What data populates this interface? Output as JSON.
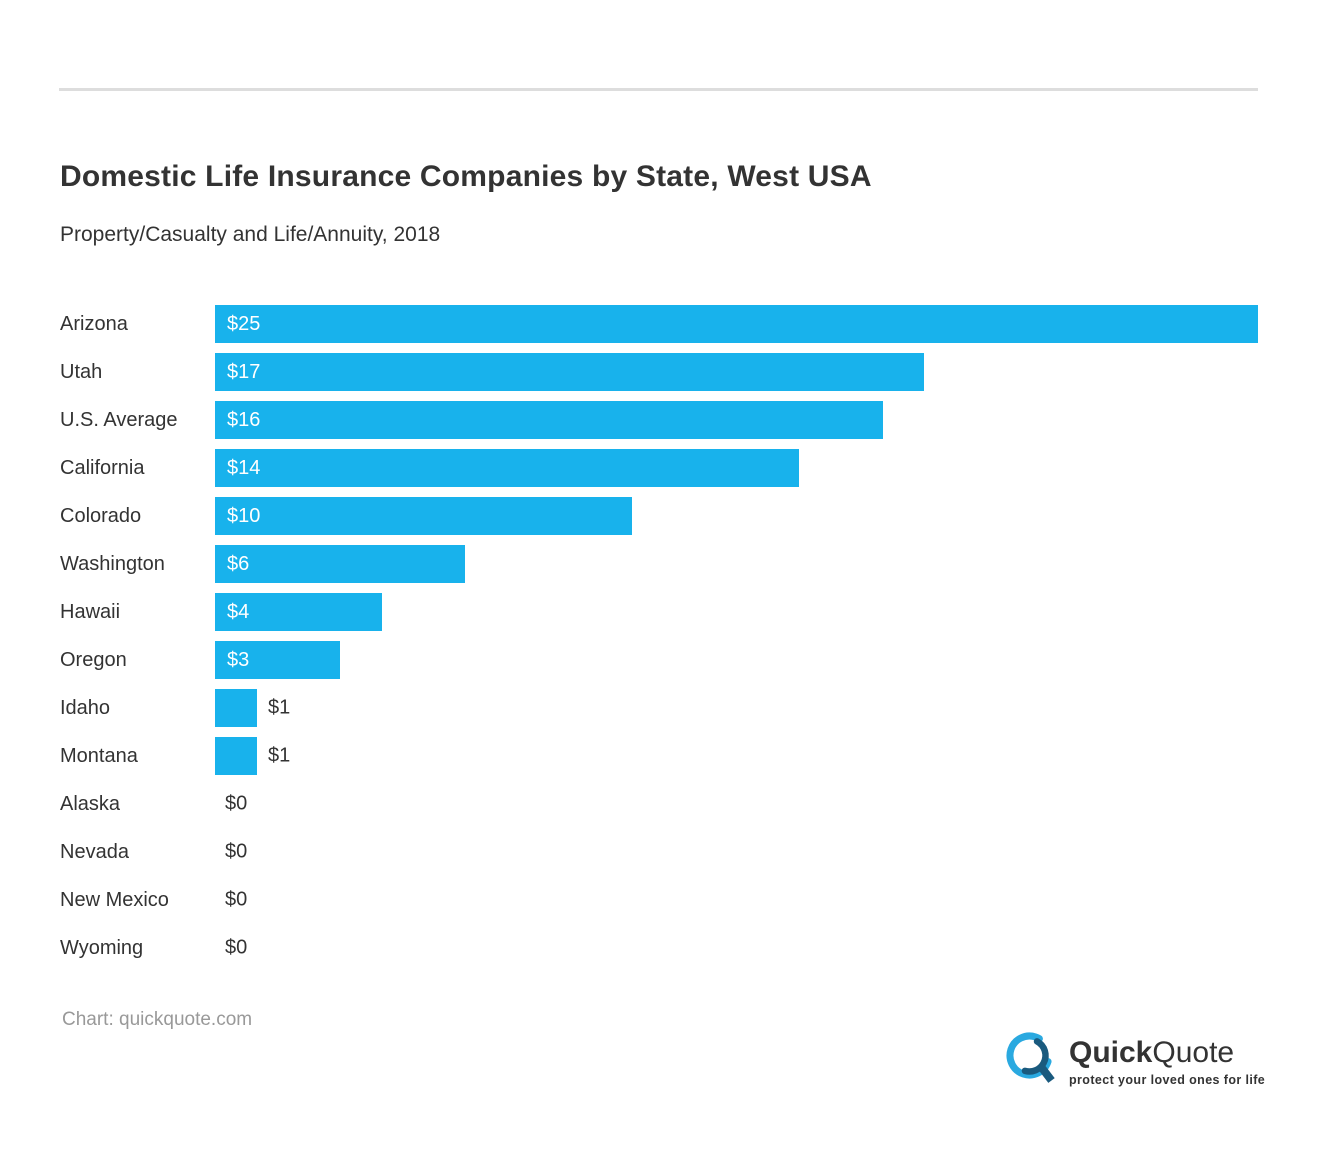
{
  "header": {
    "title": "Domestic Life Insurance Companies by State, West USA",
    "subtitle": "Property/Casualty and Life/Annuity, 2018"
  },
  "chart_data": {
    "type": "bar",
    "orientation": "horizontal",
    "title": "Domestic Life Insurance Companies by State, West USA",
    "subtitle": "Property/Casualty and Life/Annuity, 2018",
    "xlabel": "",
    "ylabel": "",
    "xlim": [
      0,
      25
    ],
    "grid": false,
    "legend": false,
    "categories": [
      "Arizona",
      "Utah",
      "U.S. Average",
      "California",
      "Colorado",
      "Washington",
      "Hawaii",
      "Oregon",
      "Idaho",
      "Montana",
      "Alaska",
      "Nevada",
      "New Mexico",
      "Wyoming"
    ],
    "values": [
      25,
      17,
      16,
      14,
      10,
      6,
      4,
      3,
      1,
      1,
      0,
      0,
      0,
      0
    ],
    "value_labels": [
      "$25",
      "$17",
      "$16",
      "$14",
      "$10",
      "$6",
      "$4",
      "$3",
      "$1",
      "$1",
      "$0",
      "$0",
      "$0",
      "$0"
    ]
  },
  "footer": {
    "attribution": "Chart: quickquote.com",
    "logo": {
      "brand_bold": "Quick",
      "brand_light": "Quote",
      "tagline": "protect your loved ones for life"
    }
  },
  "colors": {
    "bar": "#18b2ec",
    "text": "#333333",
    "bar_value_text": "#ffffff",
    "muted": "#999999",
    "divider": "#dddddd",
    "logo_dark_blue": "#1a5a7e",
    "logo_light_blue": "#2aa9e0"
  }
}
